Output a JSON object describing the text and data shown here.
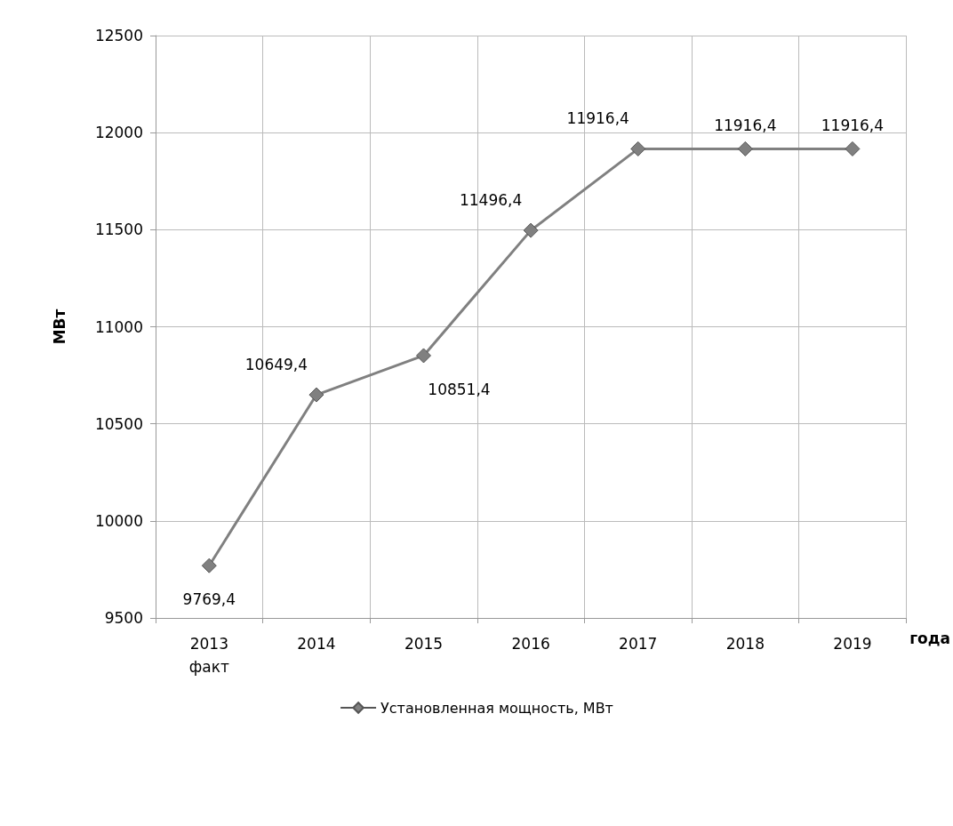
{
  "chart_data": {
    "type": "line",
    "xlabel": "года",
    "ylabel": "МВт",
    "categories": [
      "2013\nфакт",
      "2014",
      "2015",
      "2016",
      "2017",
      "2018",
      "2019"
    ],
    "series": [
      {
        "name": "Установленная мощность, МВт",
        "color": "#808080",
        "values": [
          9769.4,
          10649.4,
          10851.4,
          11496.4,
          11916.4,
          11916.4,
          11916.4
        ],
        "value_labels": [
          "9769,4",
          "10649,4",
          "10851,4",
          "11496,4",
          "11916,4",
          "11916,4",
          "11916,4"
        ]
      }
    ],
    "ylim": [
      9500,
      12500
    ],
    "yticks": [
      9500,
      10000,
      10500,
      11000,
      11500,
      12000,
      12500
    ],
    "grid": true,
    "legend": "bottom",
    "marker": "diamond",
    "line_style": "solid"
  }
}
